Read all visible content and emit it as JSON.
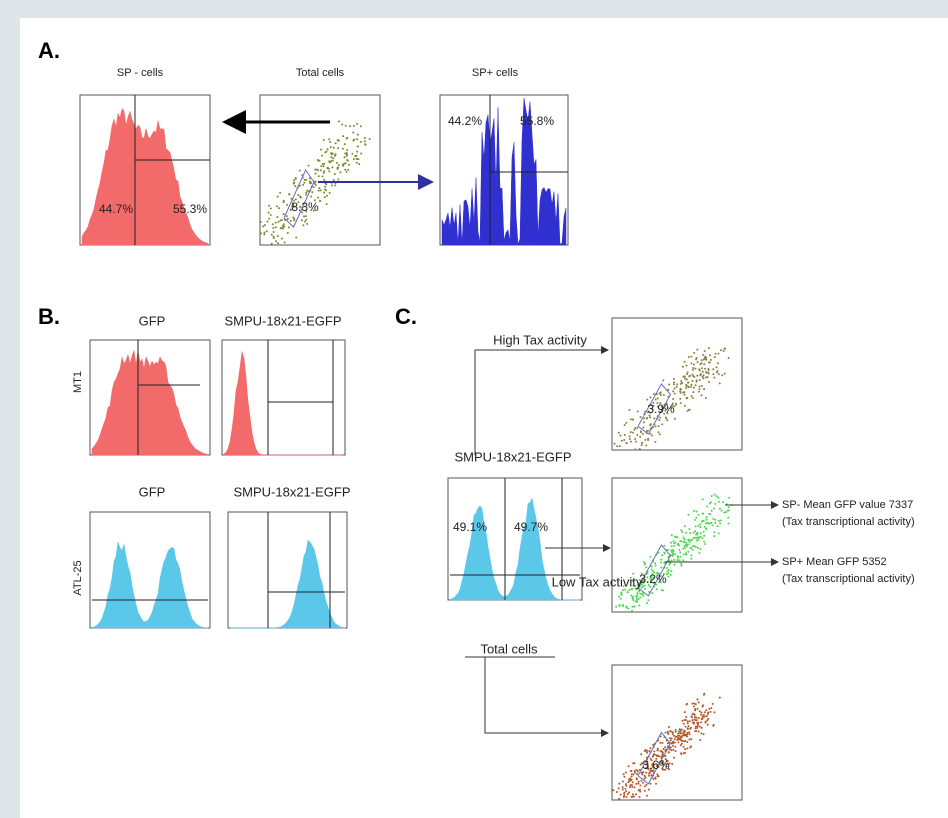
{
  "panel_a": {
    "label": "A.",
    "sp_minus": {
      "title": "SP - cells",
      "left": "44.7%",
      "right": "55.3%"
    },
    "total": {
      "title": "Total cells",
      "gate": "8.3%"
    },
    "sp_plus": {
      "title": "SP+ cells",
      "left": "44.2%",
      "right": "55.8%"
    }
  },
  "panel_b": {
    "label": "B.",
    "rows": [
      {
        "name": "MT1",
        "col1": "GFP",
        "col2": "SMPU-18x21-EGFP"
      },
      {
        "name": "ATL-25",
        "col1": "GFP",
        "col2": "SMPU-18x21-EGFP"
      }
    ]
  },
  "panel_c": {
    "label": "C.",
    "high": "High Tax activity",
    "construct": "SMPU-18x21-EGFP",
    "left": "49.1%",
    "right": "49.7%",
    "low": "Low Tax activity",
    "total": "Total cells",
    "gate_high": "3.9%",
    "gate_low": "3.2%",
    "gate_total": "3.6%",
    "notes": [
      "SP- Mean GFP value 7337",
      "(Tax transcriptional activity)",
      "SP+ Mean GFP 5352",
      "(Tax transcriptional activity)"
    ]
  }
}
